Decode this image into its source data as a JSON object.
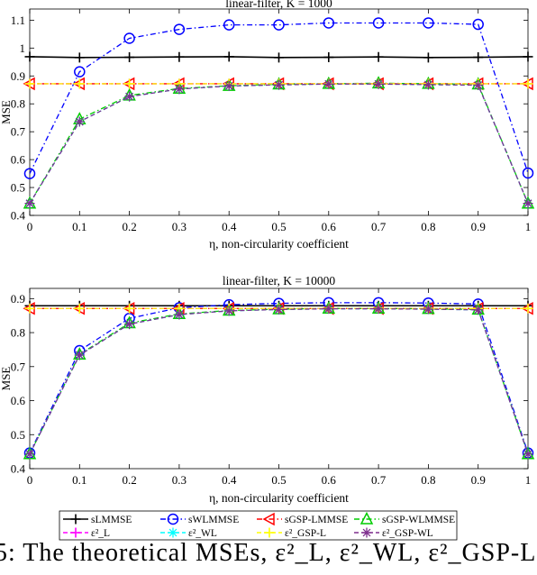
{
  "caption": {
    "label": "5:",
    "text": "The theoretical MSEs, ε²_L, ε²_WL, ε²_GSP-L, ..."
  },
  "legend": {
    "entries": [
      {
        "label": "sLMMSE",
        "color": "#000000",
        "marker": "plus",
        "dash": "solid"
      },
      {
        "label": "sWLMMSE",
        "color": "#0000ff",
        "marker": "circle",
        "dash": "dashdot"
      },
      {
        "label": "sGSP-LMMSE",
        "color": "#ff0000",
        "marker": "triangle-left",
        "dash": "dashdot"
      },
      {
        "label": "sGSP-WLMMSE",
        "color": "#00cc00",
        "marker": "triangle-up",
        "dash": "dashdot"
      },
      {
        "label": "ε²_L",
        "color": "#ff00ff",
        "marker": "plus",
        "dash": "dashed"
      },
      {
        "label": "ε²_WL",
        "color": "#00ffff",
        "marker": "asterisk",
        "dash": "dashed"
      },
      {
        "label": "ε²_GSP-L",
        "color": "#ffff00",
        "marker": "plus",
        "dash": "dashed"
      },
      {
        "label": "ε²_GSP-WL",
        "color": "#7e2f8e",
        "marker": "asterisk",
        "dash": "dashed"
      }
    ]
  },
  "chart_data": [
    {
      "type": "line",
      "title": "linear-filter, K = 1000",
      "xlabel": "η, non-circularity coefficient",
      "ylabel": "MSE",
      "x": [
        0,
        0.1,
        0.2,
        0.3,
        0.4,
        0.5,
        0.6,
        0.7,
        0.8,
        0.9,
        1
      ],
      "xticks": [
        "0",
        "0.1",
        "0.2",
        "0.3",
        "0.4",
        "0.5",
        "0.6",
        "0.7",
        "0.8",
        "0.9",
        "1"
      ],
      "yticks": [
        0.4,
        0.5,
        0.6,
        0.7,
        0.8,
        0.9,
        1,
        1.1
      ],
      "ylim": [
        0.4,
        1.14
      ],
      "xlim": [
        0,
        1
      ],
      "series": [
        {
          "name": "sLMMSE",
          "values": [
            0.969,
            0.966,
            0.967,
            0.968,
            0.969,
            0.966,
            0.967,
            0.968,
            0.966,
            0.967,
            0.969
          ]
        },
        {
          "name": "sWLMMSE",
          "values": [
            0.55,
            0.915,
            1.035,
            1.067,
            1.083,
            1.083,
            1.09,
            1.09,
            1.09,
            1.085,
            0.552
          ]
        },
        {
          "name": "sGSP-LMMSE",
          "values": [
            0.872,
            0.872,
            0.872,
            0.872,
            0.872,
            0.872,
            0.872,
            0.872,
            0.872,
            0.872,
            0.872
          ]
        },
        {
          "name": "sGSP-WLMMSE",
          "values": [
            0.443,
            0.745,
            0.83,
            0.855,
            0.865,
            0.87,
            0.872,
            0.874,
            0.872,
            0.87,
            0.443
          ]
        },
        {
          "name": "ε²_L",
          "values": [
            0.872,
            0.872,
            0.872,
            0.872,
            0.872,
            0.872,
            0.872,
            0.872,
            0.872,
            0.872,
            0.872
          ]
        },
        {
          "name": "ε²_WL",
          "values": [
            0.443,
            0.736,
            0.826,
            0.853,
            0.864,
            0.868,
            0.871,
            0.871,
            0.869,
            0.867,
            0.443
          ]
        },
        {
          "name": "ε²_GSP-L",
          "values": [
            0.872,
            0.872,
            0.872,
            0.872,
            0.872,
            0.872,
            0.872,
            0.872,
            0.872,
            0.872,
            0.872
          ]
        },
        {
          "name": "ε²_GSP-WL",
          "values": [
            0.443,
            0.736,
            0.826,
            0.853,
            0.864,
            0.868,
            0.871,
            0.871,
            0.869,
            0.867,
            0.443
          ]
        }
      ]
    },
    {
      "type": "line",
      "title": "linear-filter, K = 10000",
      "xlabel": "η, non-circularity coefficient",
      "ylabel": "MSE",
      "x": [
        0,
        0.1,
        0.2,
        0.3,
        0.4,
        0.5,
        0.6,
        0.7,
        0.8,
        0.9,
        1
      ],
      "xticks": [
        "0",
        "0.1",
        "0.2",
        "0.3",
        "0.4",
        "0.5",
        "0.6",
        "0.7",
        "0.8",
        "0.9",
        "1"
      ],
      "yticks": [
        0.4,
        0.5,
        0.6,
        0.7,
        0.8,
        0.9
      ],
      "ylim": [
        0.4,
        0.93
      ],
      "xlim": [
        0,
        1
      ],
      "series": [
        {
          "name": "sLMMSE",
          "values": [
            0.879,
            0.879,
            0.879,
            0.879,
            0.879,
            0.879,
            0.879,
            0.879,
            0.879,
            0.879,
            0.879
          ]
        },
        {
          "name": "sWLMMSE",
          "values": [
            0.446,
            0.747,
            0.842,
            0.873,
            0.882,
            0.886,
            0.888,
            0.888,
            0.887,
            0.884,
            0.446
          ]
        },
        {
          "name": "sGSP-LMMSE",
          "values": [
            0.871,
            0.871,
            0.871,
            0.871,
            0.871,
            0.871,
            0.871,
            0.871,
            0.871,
            0.871,
            0.871
          ]
        },
        {
          "name": "sGSP-WLMMSE",
          "values": [
            0.443,
            0.736,
            0.828,
            0.855,
            0.865,
            0.869,
            0.871,
            0.871,
            0.87,
            0.868,
            0.443
          ]
        },
        {
          "name": "ε²_L",
          "values": [
            0.871,
            0.871,
            0.871,
            0.871,
            0.871,
            0.871,
            0.871,
            0.871,
            0.871,
            0.871,
            0.871
          ]
        },
        {
          "name": "ε²_WL",
          "values": [
            0.443,
            0.734,
            0.825,
            0.853,
            0.864,
            0.868,
            0.87,
            0.87,
            0.869,
            0.867,
            0.443
          ]
        },
        {
          "name": "ε²_GSP-L",
          "values": [
            0.871,
            0.871,
            0.871,
            0.871,
            0.871,
            0.871,
            0.871,
            0.871,
            0.871,
            0.871,
            0.871
          ]
        },
        {
          "name": "ε²_GSP-WL",
          "values": [
            0.443,
            0.734,
            0.825,
            0.853,
            0.864,
            0.868,
            0.87,
            0.87,
            0.869,
            0.867,
            0.443
          ]
        }
      ]
    }
  ]
}
